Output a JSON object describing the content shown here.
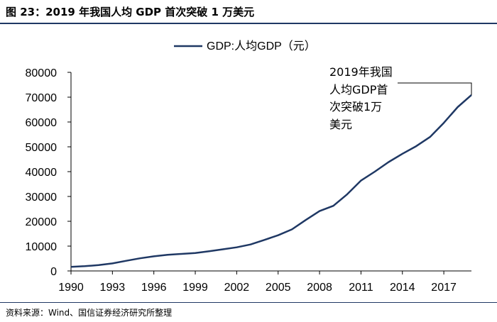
{
  "figure": {
    "title": "图 23：2019 年我国人均 GDP 首次突破 1 万美元",
    "source": "资料来源：Wind、国信证券经济研究所整理"
  },
  "chart_data": {
    "type": "line",
    "title": "",
    "xlabel": "",
    "ylabel": "",
    "legend_position": "top-center",
    "xlim": [
      1990,
      2019
    ],
    "ylim": [
      0,
      80000
    ],
    "y_ticks": [
      0,
      10000,
      20000,
      30000,
      40000,
      50000,
      60000,
      70000,
      80000
    ],
    "x_ticks": [
      1990,
      1993,
      1996,
      1999,
      2002,
      2005,
      2008,
      2011,
      2014,
      2017
    ],
    "series": [
      {
        "name": "GDP:人均GDP（元）",
        "color": "#1f3864",
        "x": [
          1990,
          1991,
          1992,
          1993,
          1994,
          1995,
          1996,
          1997,
          1998,
          1999,
          2000,
          2001,
          2002,
          2003,
          2004,
          2005,
          2006,
          2007,
          2008,
          2009,
          2010,
          2011,
          2012,
          2013,
          2014,
          2015,
          2016,
          2017,
          2018,
          2019
        ],
        "values": [
          1663,
          1912,
          2334,
          3027,
          4081,
          5091,
          5898,
          6481,
          6860,
          7229,
          7942,
          8717,
          9506,
          10666,
          12487,
          14368,
          16738,
          20505,
          24121,
          26222,
          30876,
          36403,
          40007,
          43852,
          47203,
          50251,
          53980,
          59660,
          66006,
          70892
        ]
      }
    ],
    "annotation": {
      "lines": [
        "2019年我国",
        "人均GDP首",
        "次突破1万",
        "美元"
      ],
      "x": 2019
    }
  }
}
